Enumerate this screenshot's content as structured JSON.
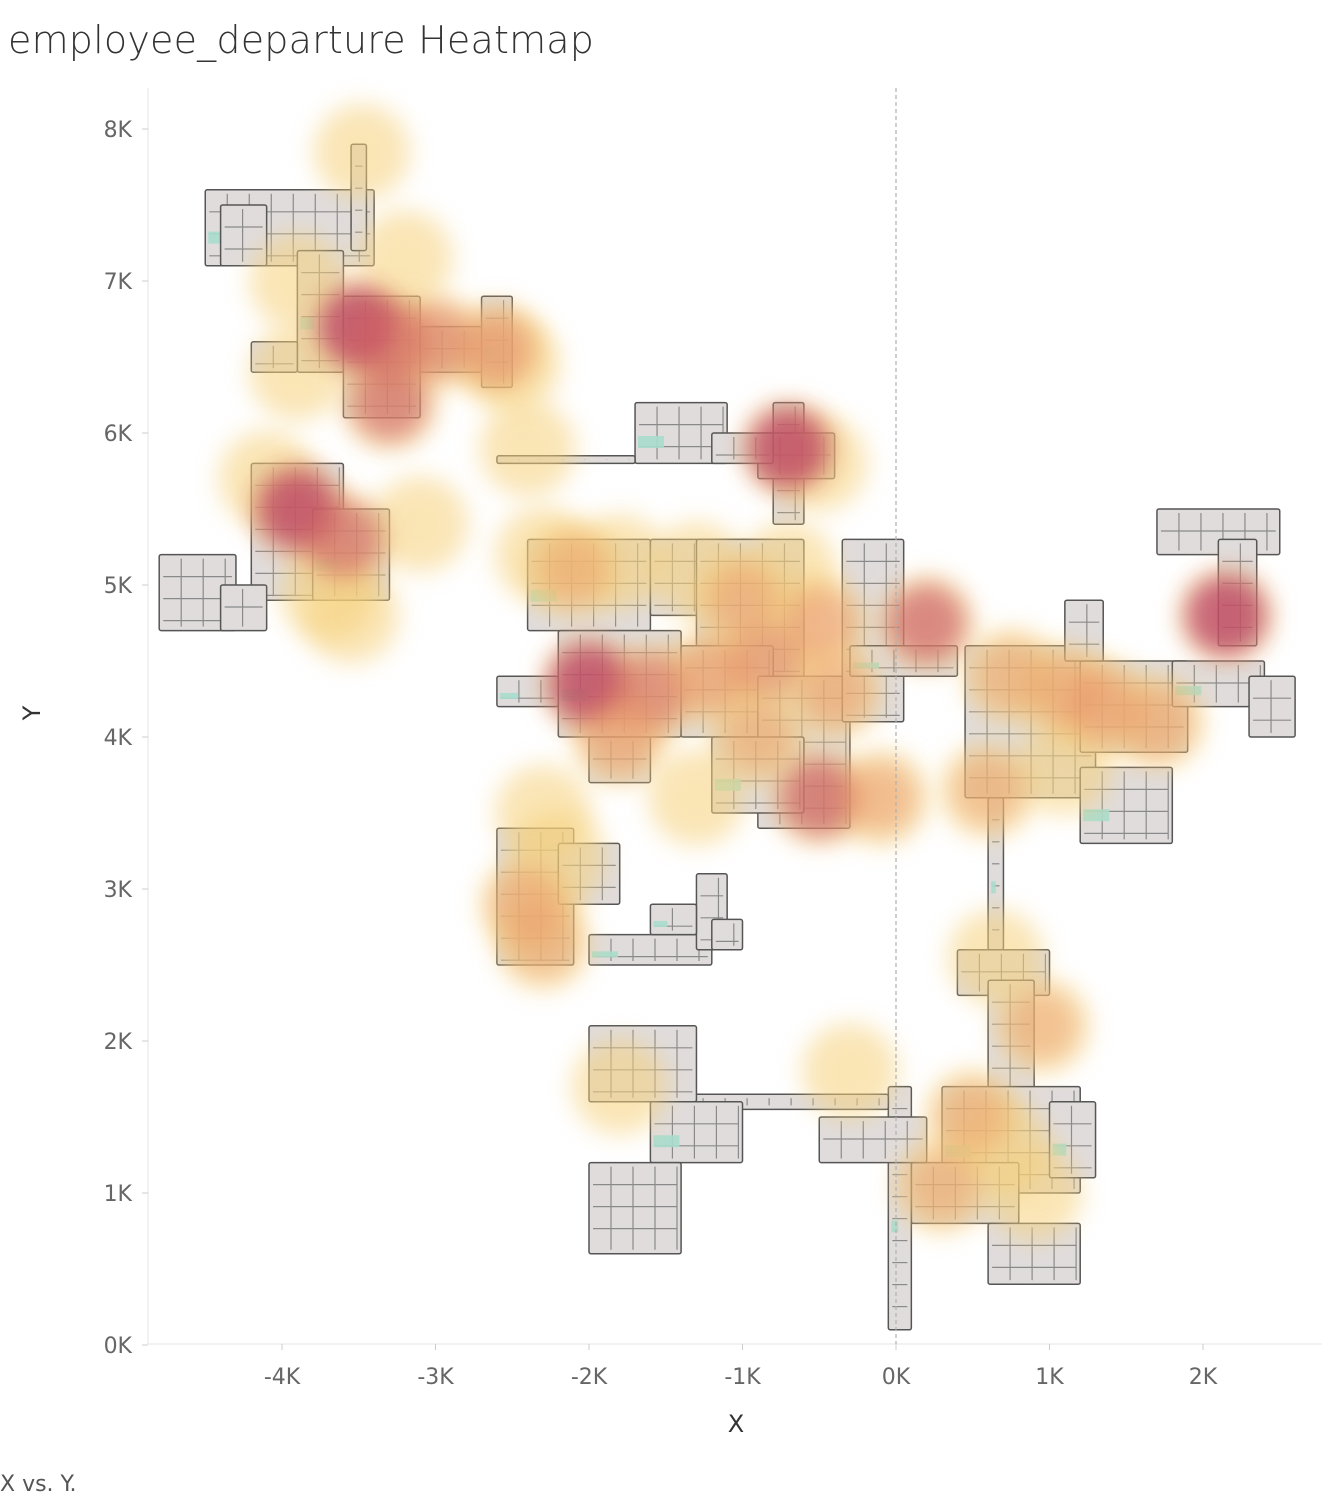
{
  "title": "employee_departure Heatmap",
  "caption": "X vs. Y.",
  "chart_data": {
    "type": "heatmap",
    "title": "employee_departure Heatmap",
    "xlabel": "X",
    "ylabel": "Y",
    "xlim": [
      -4.9,
      2.8
    ],
    "ylim": [
      -0.1,
      8.3
    ],
    "x_ticks": [
      {
        "v": -4,
        "label": "-4K"
      },
      {
        "v": -3,
        "label": "-3K"
      },
      {
        "v": -2,
        "label": "-2K"
      },
      {
        "v": -1,
        "label": "-1K"
      },
      {
        "v": 0,
        "label": "0K"
      },
      {
        "v": 1,
        "label": "1K"
      },
      {
        "v": 2,
        "label": "2K"
      }
    ],
    "y_ticks": [
      {
        "v": 0,
        "label": "0K"
      },
      {
        "v": 1,
        "label": "1K"
      },
      {
        "v": 2,
        "label": "2K"
      },
      {
        "v": 3,
        "label": "3K"
      },
      {
        "v": 4,
        "label": "4K"
      },
      {
        "v": 5,
        "label": "5K"
      },
      {
        "v": 6,
        "label": "6K"
      },
      {
        "v": 7,
        "label": "7K"
      },
      {
        "v": 8,
        "label": "8K"
      }
    ],
    "reference_line_x": 0,
    "grid": false,
    "colors": {
      "low": "#f5d77a",
      "mid": "#e8906a",
      "high": "#b5305f",
      "floor": "#e0dcdc",
      "outline": "#555555",
      "accent": "#a8dccc"
    },
    "hotspots": [
      {
        "x": -3.48,
        "y": 7.85,
        "w": 0.35
      },
      {
        "x": -3.2,
        "y": 7.15,
        "w": 0.4
      },
      {
        "x": -3.9,
        "y": 7.0,
        "w": 0.35
      },
      {
        "x": -3.5,
        "y": 6.7,
        "w": 1.0
      },
      {
        "x": -3.3,
        "y": 6.6,
        "w": 0.8
      },
      {
        "x": -3.0,
        "y": 6.6,
        "w": 0.7
      },
      {
        "x": -2.6,
        "y": 6.55,
        "w": 0.65
      },
      {
        "x": -2.5,
        "y": 6.45,
        "w": 0.4
      },
      {
        "x": -3.3,
        "y": 6.2,
        "w": 0.8
      },
      {
        "x": -3.9,
        "y": 6.4,
        "w": 0.4
      },
      {
        "x": -2.4,
        "y": 5.9,
        "w": 0.35
      },
      {
        "x": -4.1,
        "y": 5.7,
        "w": 0.4
      },
      {
        "x": -3.9,
        "y": 5.5,
        "w": 1.0
      },
      {
        "x": -3.6,
        "y": 5.3,
        "w": 0.8
      },
      {
        "x": -3.7,
        "y": 4.95,
        "w": 0.4
      },
      {
        "x": -3.55,
        "y": 4.8,
        "w": 0.35
      },
      {
        "x": -3.1,
        "y": 5.4,
        "w": 0.4
      },
      {
        "x": -0.7,
        "y": 5.9,
        "w": 1.0
      },
      {
        "x": -0.5,
        "y": 5.8,
        "w": 0.45
      },
      {
        "x": -2.3,
        "y": 5.2,
        "w": 0.4
      },
      {
        "x": -2.1,
        "y": 5.1,
        "w": 0.5
      },
      {
        "x": -1.8,
        "y": 5.15,
        "w": 0.4
      },
      {
        "x": -1.3,
        "y": 5.1,
        "w": 0.45
      },
      {
        "x": -1.0,
        "y": 4.9,
        "w": 0.55
      },
      {
        "x": -0.7,
        "y": 5.1,
        "w": 0.45
      },
      {
        "x": -0.5,
        "y": 4.75,
        "w": 0.6
      },
      {
        "x": 0.2,
        "y": 4.75,
        "w": 0.85
      },
      {
        "x": 2.15,
        "y": 4.8,
        "w": 1.0
      },
      {
        "x": -2.0,
        "y": 4.35,
        "w": 1.0
      },
      {
        "x": -1.6,
        "y": 4.3,
        "w": 0.75
      },
      {
        "x": -1.2,
        "y": 4.4,
        "w": 0.6
      },
      {
        "x": -0.85,
        "y": 4.5,
        "w": 0.65
      },
      {
        "x": -0.4,
        "y": 4.3,
        "w": 0.55
      },
      {
        "x": -1.8,
        "y": 4.0,
        "w": 0.6
      },
      {
        "x": -0.9,
        "y": 4.0,
        "w": 0.5
      },
      {
        "x": -0.5,
        "y": 3.6,
        "w": 0.85
      },
      {
        "x": -0.1,
        "y": 3.6,
        "w": 0.55
      },
      {
        "x": -1.3,
        "y": 3.6,
        "w": 0.45
      },
      {
        "x": -2.3,
        "y": 3.5,
        "w": 0.45
      },
      {
        "x": -2.2,
        "y": 3.2,
        "w": 0.4
      },
      {
        "x": -2.4,
        "y": 2.9,
        "w": 0.55
      },
      {
        "x": -2.3,
        "y": 2.65,
        "w": 0.5
      },
      {
        "x": 0.75,
        "y": 4.4,
        "w": 0.5
      },
      {
        "x": 1.1,
        "y": 4.3,
        "w": 0.55
      },
      {
        "x": 1.35,
        "y": 4.2,
        "w": 0.6
      },
      {
        "x": 1.7,
        "y": 4.1,
        "w": 0.55
      },
      {
        "x": 0.6,
        "y": 3.65,
        "w": 0.5
      },
      {
        "x": 1.1,
        "y": 3.8,
        "w": 0.45
      },
      {
        "x": 0.65,
        "y": 2.55,
        "w": 0.4
      },
      {
        "x": 0.95,
        "y": 2.1,
        "w": 0.5
      },
      {
        "x": -1.8,
        "y": 1.7,
        "w": 0.45
      },
      {
        "x": -0.3,
        "y": 1.8,
        "w": 0.4
      },
      {
        "x": 0.5,
        "y": 1.5,
        "w": 0.5
      },
      {
        "x": 0.3,
        "y": 1.05,
        "w": 0.5
      },
      {
        "x": 0.9,
        "y": 1.0,
        "w": 0.45
      },
      {
        "x": 0.7,
        "y": 1.3,
        "w": 0.4
      }
    ]
  }
}
